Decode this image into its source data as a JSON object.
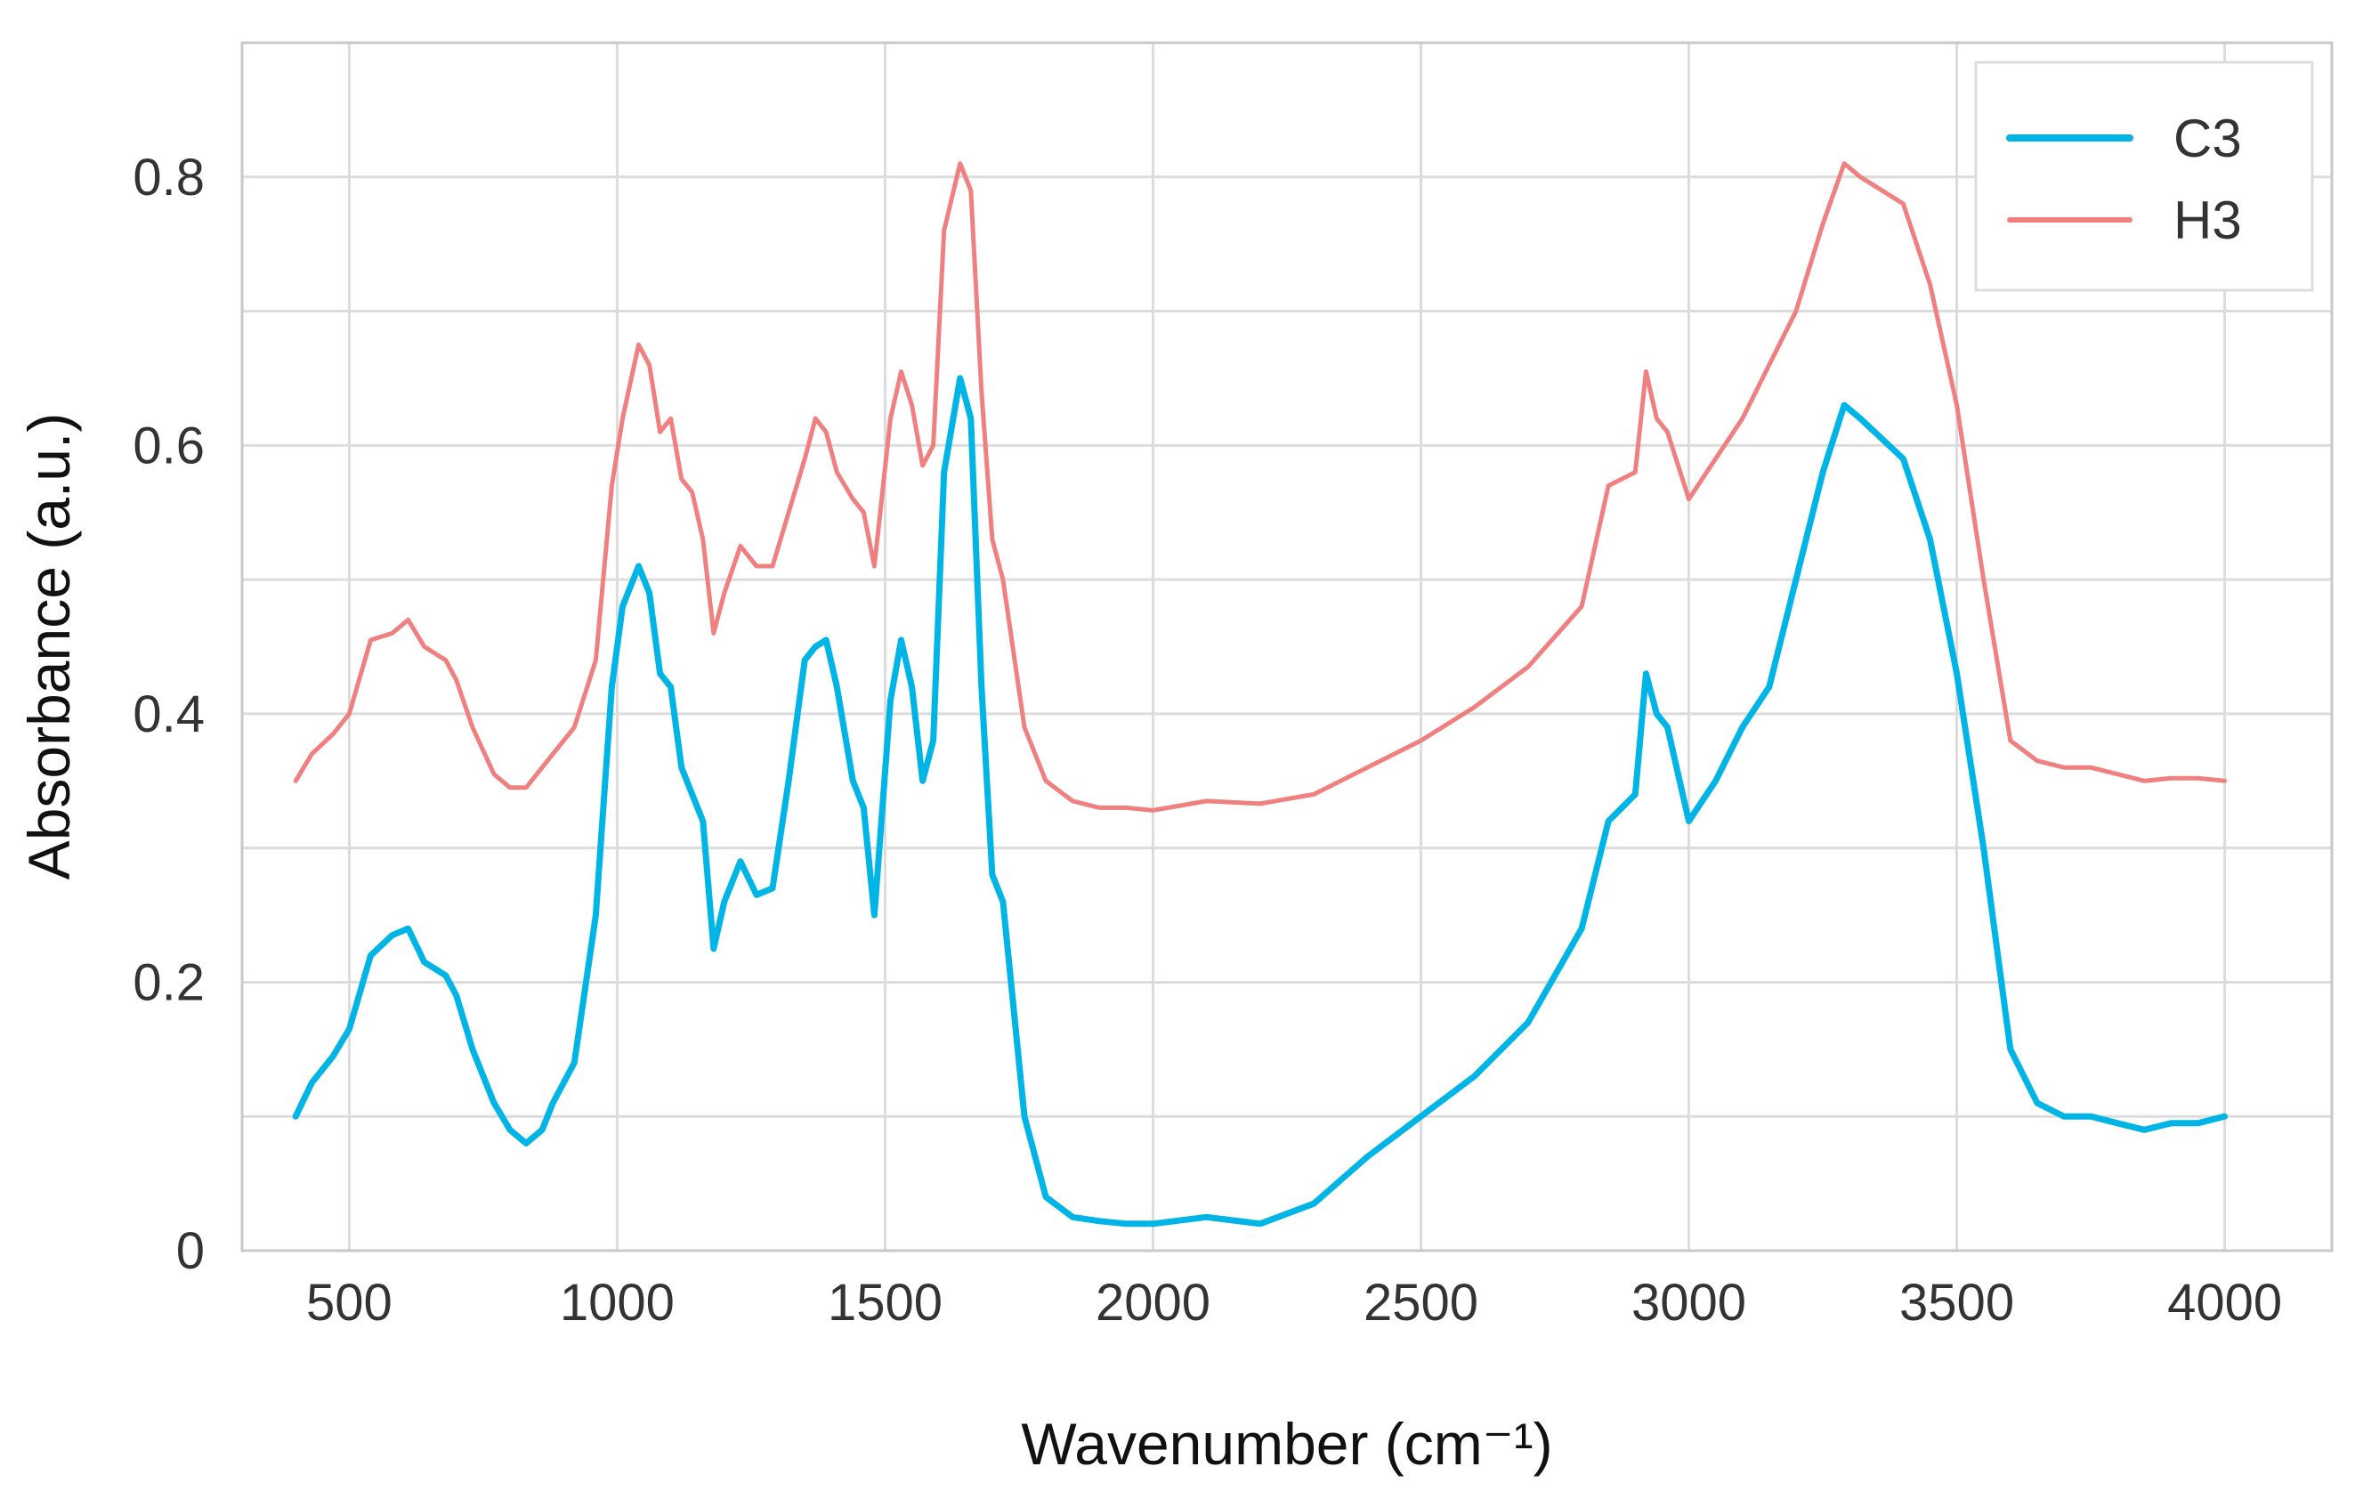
{
  "chart_data": {
    "type": "line",
    "title": "",
    "xlabel": "Wavenumber (cm⁻¹)",
    "ylabel": "Absorbance (a.u.)",
    "xlim": [
      300,
      4200
    ],
    "ylim": [
      0,
      0.9
    ],
    "x_ticks": [
      500,
      1000,
      1500,
      2000,
      2500,
      3000,
      3500,
      4000
    ],
    "x_tick_labels": [
      "500",
      "1000",
      "1500",
      "2000",
      "2500",
      "3000",
      "3500",
      "4000"
    ],
    "y_ticks": [
      0,
      0.2,
      0.4,
      0.6,
      0.8
    ],
    "y_tick_labels": [
      "0",
      "0.2",
      "0.4",
      "0.6",
      "0.8"
    ],
    "grid": true,
    "legend_position": "top-right",
    "series": [
      {
        "name": "C3",
        "color": "#00b4e6",
        "x": [
          400,
          430,
          470,
          500,
          540,
          580,
          610,
          640,
          680,
          700,
          730,
          770,
          800,
          830,
          860,
          880,
          920,
          960,
          990,
          1010,
          1040,
          1060,
          1080,
          1100,
          1120,
          1140,
          1160,
          1180,
          1200,
          1230,
          1260,
          1290,
          1320,
          1350,
          1370,
          1390,
          1410,
          1440,
          1460,
          1480,
          1510,
          1530,
          1550,
          1570,
          1590,
          1610,
          1640,
          1660,
          1680,
          1700,
          1720,
          1760,
          1800,
          1850,
          1900,
          1950,
          2000,
          2100,
          2200,
          2300,
          2400,
          2500,
          2600,
          2700,
          2800,
          2850,
          2900,
          2920,
          2940,
          2960,
          3000,
          3050,
          3100,
          3150,
          3200,
          3250,
          3290,
          3320,
          3400,
          3450,
          3500,
          3550,
          3600,
          3650,
          3700,
          3750,
          3800,
          3850,
          3900,
          3950,
          4000
        ],
        "y": [
          0.1,
          0.125,
          0.145,
          0.165,
          0.22,
          0.235,
          0.24,
          0.215,
          0.205,
          0.19,
          0.15,
          0.11,
          0.09,
          0.08,
          0.09,
          0.11,
          0.14,
          0.25,
          0.42,
          0.48,
          0.51,
          0.49,
          0.43,
          0.42,
          0.36,
          0.34,
          0.32,
          0.225,
          0.26,
          0.29,
          0.265,
          0.27,
          0.35,
          0.44,
          0.45,
          0.455,
          0.42,
          0.35,
          0.33,
          0.25,
          0.41,
          0.455,
          0.42,
          0.35,
          0.38,
          0.58,
          0.65,
          0.62,
          0.42,
          0.28,
          0.26,
          0.1,
          0.04,
          0.025,
          0.022,
          0.02,
          0.02,
          0.025,
          0.02,
          0.035,
          0.07,
          0.1,
          0.13,
          0.17,
          0.24,
          0.32,
          0.34,
          0.43,
          0.4,
          0.39,
          0.32,
          0.35,
          0.39,
          0.42,
          0.5,
          0.58,
          0.63,
          0.62,
          0.59,
          0.53,
          0.43,
          0.3,
          0.15,
          0.11,
          0.1,
          0.1,
          0.095,
          0.09,
          0.095,
          0.095,
          0.1
        ]
      },
      {
        "name": "H3",
        "color": "#f08080",
        "x": [
          400,
          430,
          470,
          500,
          540,
          580,
          610,
          640,
          680,
          700,
          730,
          770,
          800,
          830,
          860,
          880,
          920,
          960,
          990,
          1010,
          1040,
          1060,
          1080,
          1100,
          1120,
          1140,
          1160,
          1180,
          1200,
          1230,
          1260,
          1290,
          1320,
          1350,
          1370,
          1390,
          1410,
          1440,
          1460,
          1480,
          1510,
          1530,
          1550,
          1570,
          1590,
          1610,
          1640,
          1660,
          1680,
          1700,
          1720,
          1760,
          1800,
          1850,
          1900,
          1950,
          2000,
          2100,
          2200,
          2300,
          2400,
          2500,
          2600,
          2700,
          2800,
          2850,
          2900,
          2920,
          2940,
          2960,
          3000,
          3050,
          3100,
          3150,
          3200,
          3250,
          3290,
          3320,
          3400,
          3450,
          3500,
          3550,
          3600,
          3650,
          3700,
          3750,
          3800,
          3850,
          3900,
          3950,
          4000
        ],
        "y": [
          0.35,
          0.37,
          0.385,
          0.4,
          0.455,
          0.46,
          0.47,
          0.45,
          0.44,
          0.425,
          0.39,
          0.355,
          0.345,
          0.345,
          0.36,
          0.37,
          0.39,
          0.44,
          0.57,
          0.62,
          0.675,
          0.66,
          0.61,
          0.62,
          0.575,
          0.565,
          0.53,
          0.46,
          0.49,
          0.525,
          0.51,
          0.51,
          0.55,
          0.59,
          0.62,
          0.61,
          0.58,
          0.56,
          0.55,
          0.51,
          0.62,
          0.655,
          0.63,
          0.585,
          0.6,
          0.76,
          0.81,
          0.79,
          0.64,
          0.53,
          0.5,
          0.39,
          0.35,
          0.335,
          0.33,
          0.33,
          0.328,
          0.335,
          0.333,
          0.34,
          0.36,
          0.38,
          0.405,
          0.435,
          0.48,
          0.57,
          0.58,
          0.655,
          0.62,
          0.61,
          0.56,
          0.59,
          0.62,
          0.66,
          0.7,
          0.765,
          0.81,
          0.8,
          0.78,
          0.72,
          0.63,
          0.5,
          0.38,
          0.365,
          0.36,
          0.36,
          0.355,
          0.35,
          0.352,
          0.352,
          0.35
        ]
      }
    ]
  }
}
